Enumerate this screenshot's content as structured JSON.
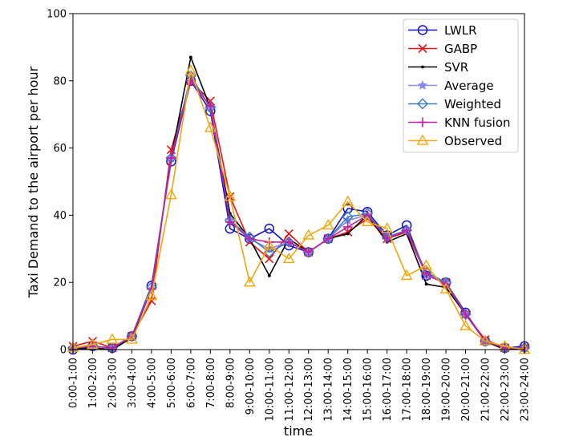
{
  "chart_data": {
    "type": "line",
    "title": "",
    "xlabel": "time",
    "ylabel": "Taxi Demand to the airport per hour",
    "ylim": [
      0,
      100
    ],
    "yticks": [
      0,
      20,
      40,
      60,
      80,
      100
    ],
    "grid": false,
    "legend_position": "top-right",
    "categories": [
      "0:00-1:00",
      "1:00-2:00",
      "2:00-3:00",
      "3:00-4:00",
      "4:00-5:00",
      "5:00-6:00",
      "6:00-7:00",
      "7:00-8:00",
      "8:00-9:00",
      "9:00-10:00",
      "10:00-11:00",
      "11:00-12:00",
      "12:00-13:00",
      "13:00-14:00",
      "14:00-15:00",
      "15:00-16:00",
      "16:00-17:00",
      "17:00-18:00",
      "18:00-19:00",
      "19:00-20:00",
      "20:00-21:00",
      "21:00-22:00",
      "22:00-23:00",
      "23:00-24:00"
    ],
    "series": [
      {
        "name": "LWLR",
        "color": "#1010d0",
        "marker": "circle",
        "values": [
          0,
          1,
          0.5,
          4,
          19,
          56,
          80,
          71,
          36,
          33,
          36,
          31,
          29,
          33,
          42,
          41,
          34,
          37,
          22,
          20,
          11,
          2.5,
          0.5,
          1
        ]
      },
      {
        "name": "GABP",
        "color": "#ee1111",
        "marker": "x",
        "values": [
          1,
          2.5,
          0.5,
          4,
          14.5,
          59.5,
          80,
          74,
          45.5,
          32,
          27,
          34.5,
          29,
          33,
          35,
          39,
          33,
          35,
          22,
          20,
          10.5,
          3,
          0.5,
          0.5
        ]
      },
      {
        "name": "SVR",
        "color": "#000000",
        "marker": "dot",
        "values": [
          0,
          0.5,
          0,
          3.5,
          18,
          57,
          87,
          72,
          40.5,
          33,
          22,
          33,
          29,
          33,
          34.5,
          40,
          32,
          34.5,
          19.5,
          18.5,
          10.5,
          2.5,
          0,
          0.5
        ]
      },
      {
        "name": "Average",
        "color": "#8888ee",
        "marker": "star",
        "values": [
          0.5,
          1,
          0.5,
          4,
          18,
          57,
          81,
          72,
          38.5,
          33,
          30,
          32,
          29,
          33,
          38.5,
          40,
          33.5,
          35.5,
          22,
          20,
          10.5,
          2.5,
          0.5,
          0.5
        ]
      },
      {
        "name": "Weighted",
        "color": "#3a7bc0",
        "marker": "diamond",
        "values": [
          0.5,
          1,
          0.5,
          4,
          18.5,
          57,
          81.5,
          72,
          38.5,
          33.5,
          29,
          32,
          29,
          33,
          39.5,
          40.5,
          33.5,
          35.5,
          23,
          20,
          10.5,
          2.5,
          0.5,
          0.5
        ]
      },
      {
        "name": "KNN fusion",
        "color": "#c020a0",
        "marker": "plus",
        "values": [
          0.5,
          1,
          0.5,
          4,
          18,
          57,
          80,
          72.5,
          38,
          33,
          32,
          32,
          29,
          33,
          36.5,
          40,
          33,
          35.5,
          22.5,
          19.5,
          10.5,
          2.5,
          0.5,
          0.5
        ]
      },
      {
        "name": "Observed",
        "color": "#f5a50a",
        "marker": "triangle",
        "values": [
          0.5,
          1.5,
          3,
          3,
          16,
          46,
          83,
          66,
          45.5,
          20,
          31,
          27,
          34,
          37,
          44,
          38,
          36,
          22,
          25,
          18,
          7,
          2.5,
          1,
          0
        ]
      }
    ]
  }
}
